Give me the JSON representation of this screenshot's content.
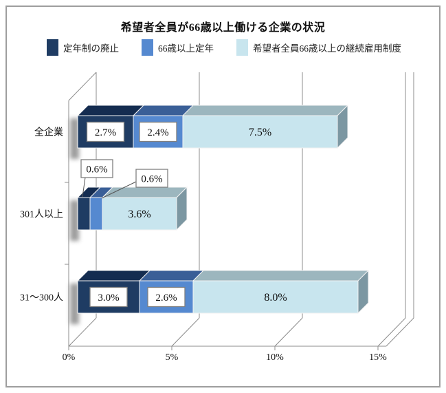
{
  "chart_data": {
    "type": "bar",
    "orientation": "horizontal",
    "style": "3d-stacked",
    "title": "希望者全員が66歳以上働ける企業の状況",
    "categories": [
      "全企業",
      "301人以上",
      "31〜300人"
    ],
    "series": [
      {
        "name": "定年制の廃止",
        "color": "#1F3C63",
        "values": [
          2.7,
          0.6,
          3.0
        ]
      },
      {
        "name": "66歳以上定年",
        "color": "#5589D0",
        "values": [
          2.4,
          0.6,
          2.6
        ]
      },
      {
        "name": "希望者全員66歳以上の継続雇用制度",
        "color": "#C8E5EE",
        "values": [
          7.5,
          3.6,
          8.0
        ]
      }
    ],
    "data_labels": [
      [
        "2.7%",
        "2.4%",
        "7.5%"
      ],
      [
        "0.6%",
        "0.6%",
        "3.6%"
      ],
      [
        "3.0%",
        "2.6%",
        "8.0%"
      ]
    ],
    "x_ticks": [
      "0%",
      "5%",
      "10%",
      "15%"
    ],
    "x_range": [
      0,
      15.4
    ],
    "grid": true,
    "legend_position": "top"
  },
  "colors": {
    "navy_front": "#1F3C63",
    "navy_top": "#142C50",
    "blue_front": "#5589D0",
    "blue_top": "#3A5F97",
    "light_front": "#C8E5EE",
    "light_top": "#9CB6BE",
    "light_side": "#7C97A2",
    "grid": "#8C8C8C",
    "axis": "#808080",
    "frame_border": "#9E9E9E",
    "label_box_border": "#7F7F7F",
    "text": "#111111"
  }
}
